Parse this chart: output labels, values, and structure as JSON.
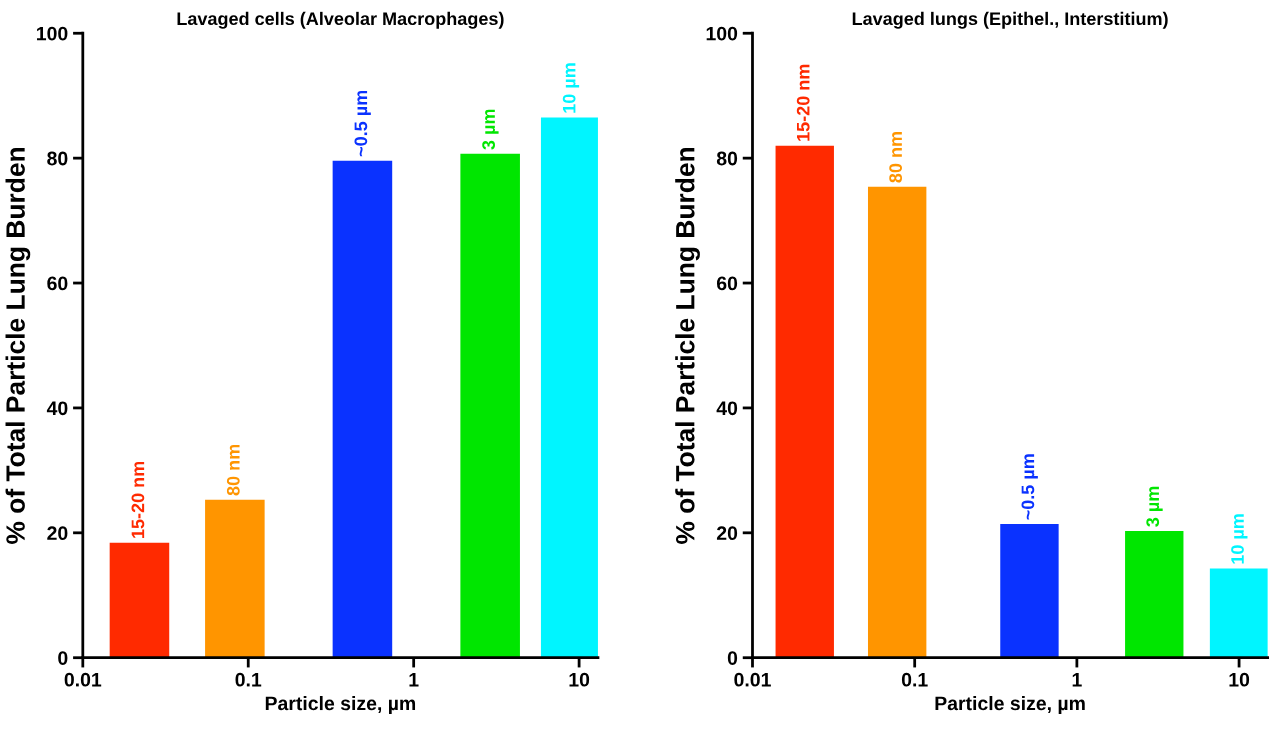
{
  "chart_data": [
    {
      "type": "bar",
      "title": "Lavaged cells (Alveolar Macrophages)",
      "xlabel": "Particle size, µm",
      "ylabel": "% of Total Particle Lung Burden",
      "log": "x",
      "xlim": [
        0.01,
        13
      ],
      "xticks": [
        0.01,
        0.1,
        1,
        10
      ],
      "ylim": [
        0,
        100
      ],
      "yticks": [
        0,
        20,
        40,
        60,
        80,
        100
      ],
      "grid": false,
      "legend": false,
      "series": [
        {
          "name": "15-20 nm",
          "color": "#ff2a00",
          "x": [
            0.022
          ],
          "values": [
            18.4
          ]
        },
        {
          "name": "80 nm",
          "color": "#ff9500",
          "x": [
            0.083
          ],
          "values": [
            25.3
          ]
        },
        {
          "name": "~0.5 µm",
          "color": "#0a32ff",
          "x": [
            0.49
          ],
          "values": [
            79.6
          ]
        },
        {
          "name": "3 µm",
          "color": "#00e600",
          "x": [
            2.9
          ],
          "values": [
            80.7
          ]
        },
        {
          "name": "10 µm",
          "color": "#00f5ff",
          "x": [
            8.9
          ],
          "values": [
            86.5
          ]
        }
      ]
    },
    {
      "type": "bar",
      "title": "Lavaged lungs (Epithel., Interstitium)",
      "xlabel": "Particle size, µm",
      "ylabel": "% of Total Particle Lung Burden",
      "log": "x",
      "xlim": [
        0.01,
        15
      ],
      "xticks": [
        0.01,
        0.1,
        1,
        10
      ],
      "ylim": [
        0,
        100
      ],
      "yticks": [
        0,
        20,
        40,
        60,
        80,
        100
      ],
      "grid": false,
      "legend": false,
      "series": [
        {
          "name": "15-20 nm",
          "color": "#ff2a00",
          "x": [
            0.021
          ],
          "values": [
            82
          ]
        },
        {
          "name": "80 nm",
          "color": "#ff9500",
          "x": [
            0.078
          ],
          "values": [
            75.4
          ]
        },
        {
          "name": "~0.5 µm",
          "color": "#0a32ff",
          "x": [
            0.51
          ],
          "values": [
            21.4
          ]
        },
        {
          "name": "3 µm",
          "color": "#00e600",
          "x": [
            3
          ],
          "values": [
            20.3
          ]
        },
        {
          "name": "10 µm",
          "color": "#00f5ff",
          "x": [
            10
          ],
          "values": [
            14.3
          ]
        }
      ]
    }
  ]
}
